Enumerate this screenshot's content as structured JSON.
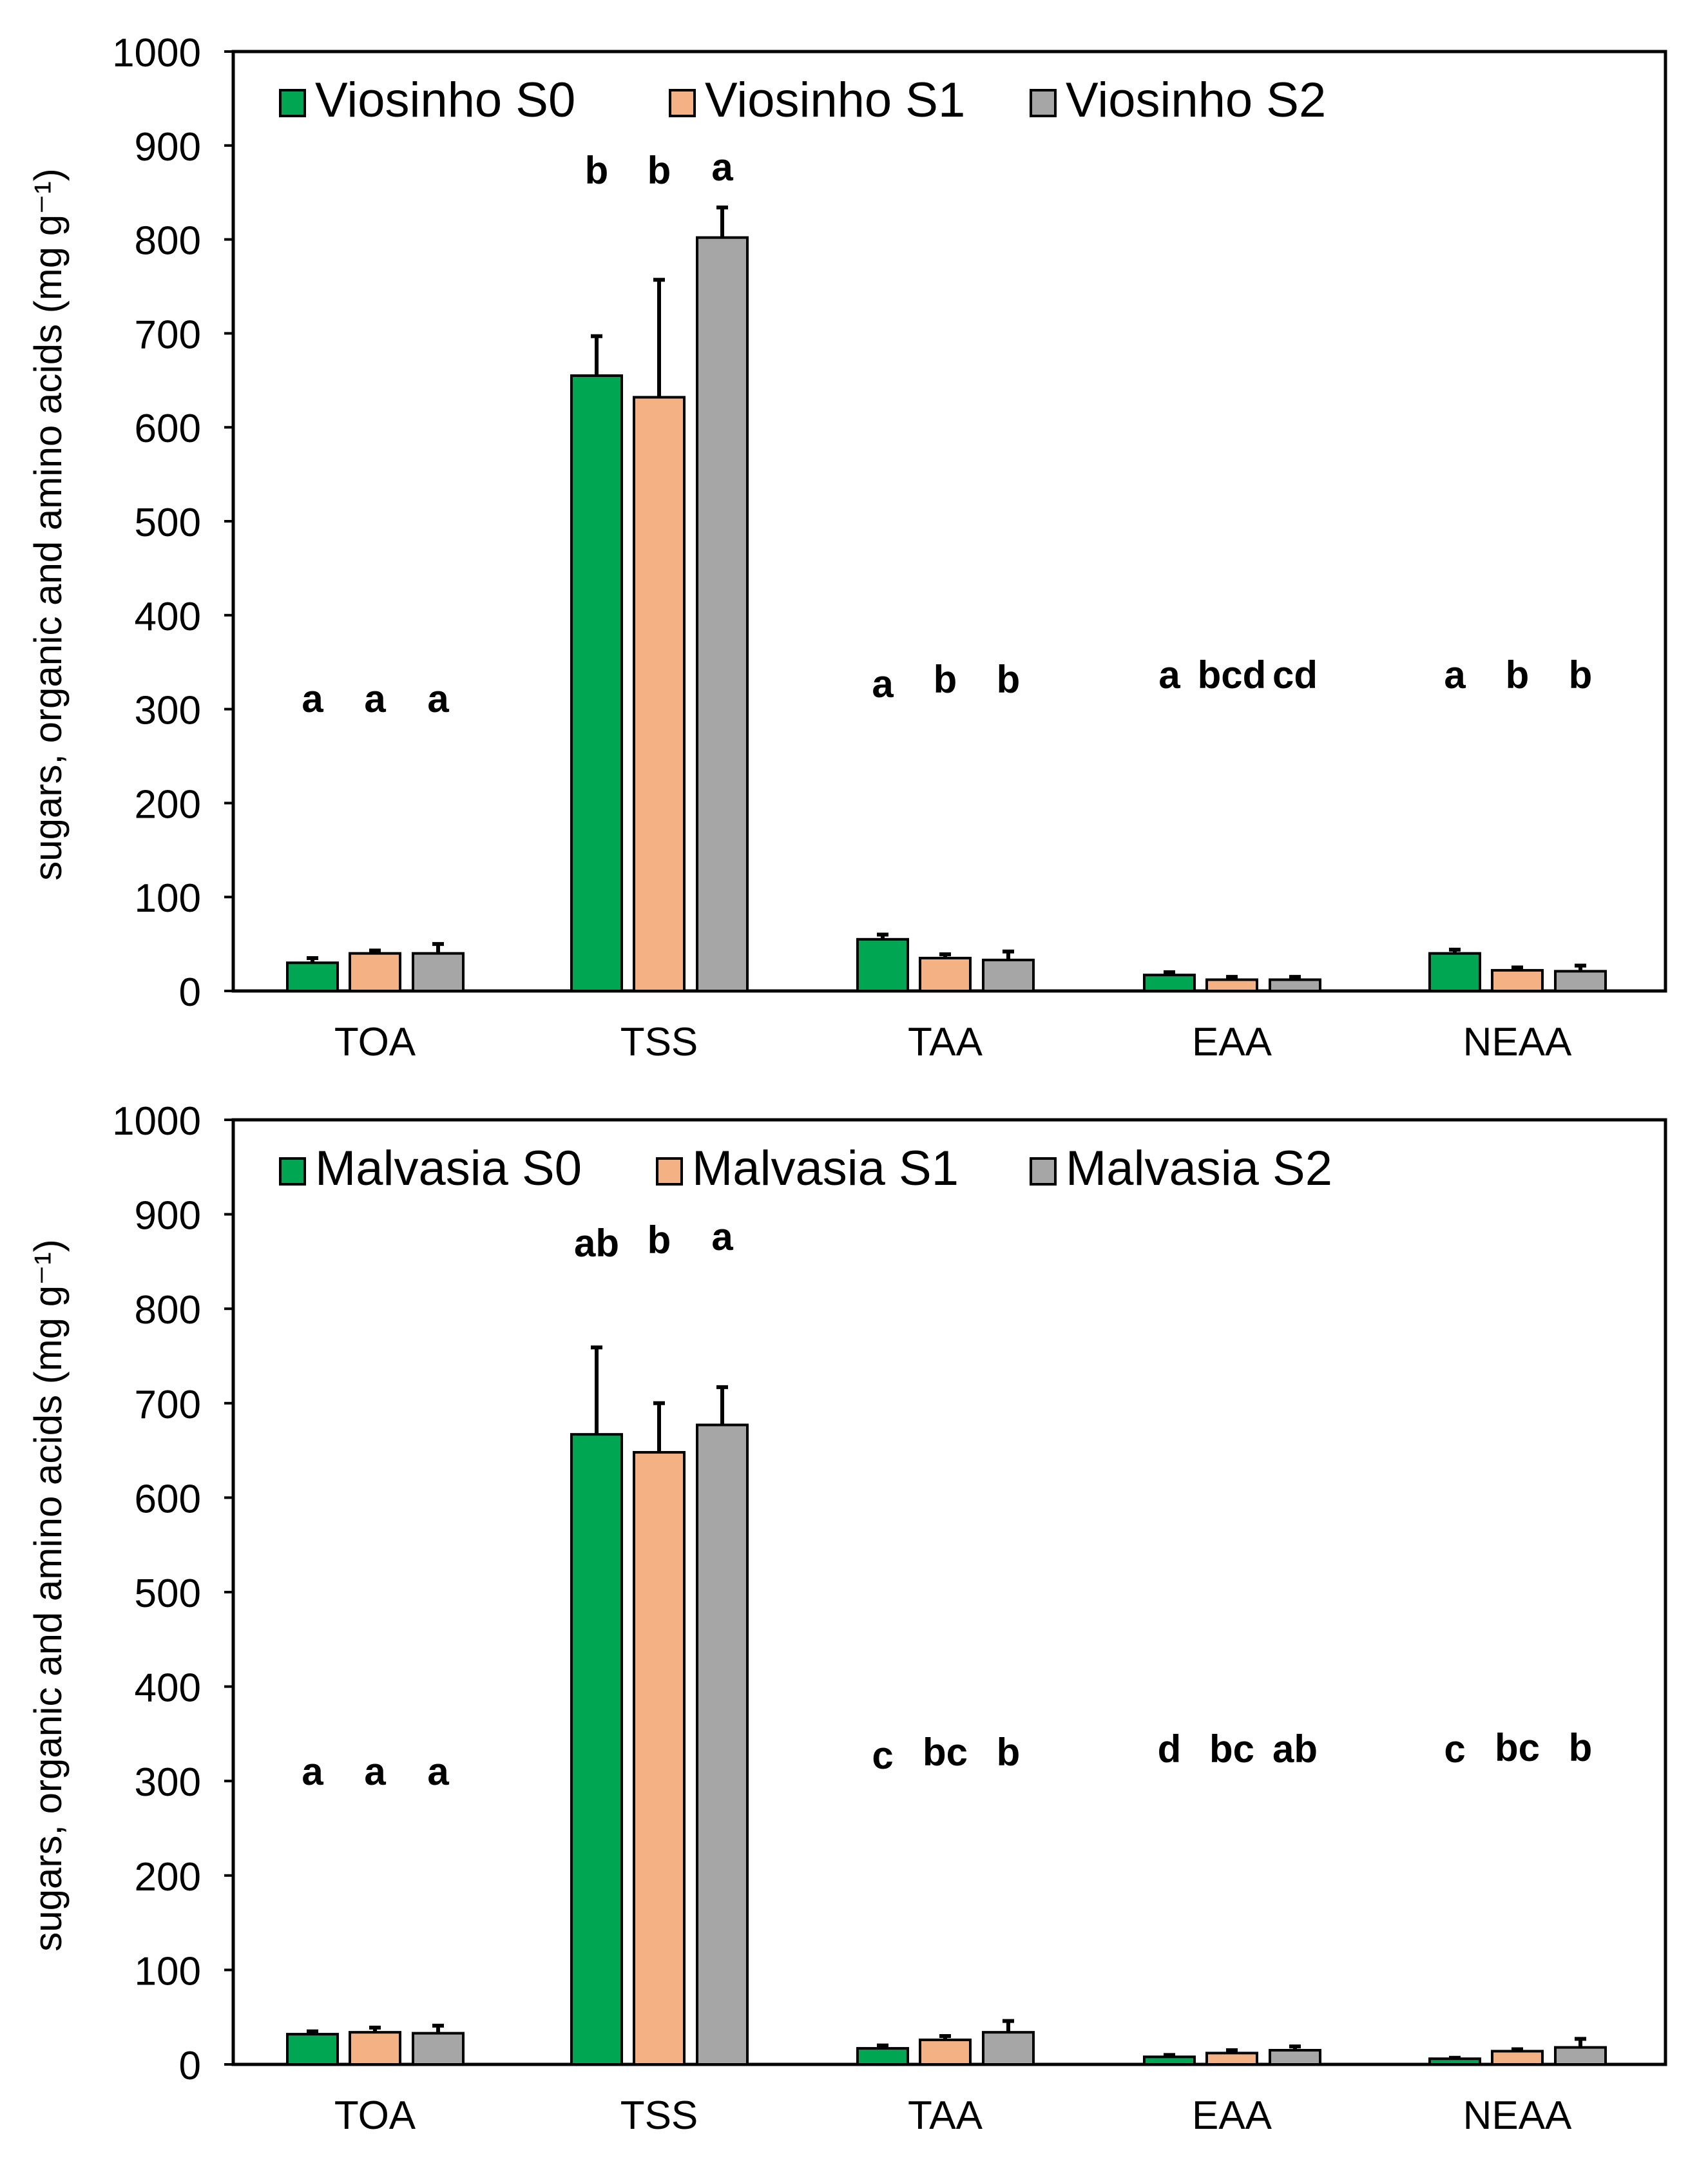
{
  "chart_data": [
    {
      "type": "bar",
      "title": "",
      "xlabel": "",
      "ylabel": "sugars, organic and amino acids (mg g⁻¹)",
      "ylim": [
        0,
        1000
      ],
      "yticks": [
        0,
        100,
        200,
        300,
        400,
        500,
        600,
        700,
        800,
        900,
        1000
      ],
      "grid": false,
      "legend_position": "top",
      "categories": [
        "TOA",
        "TSS",
        "TAA",
        "EAA",
        "NEAA"
      ],
      "series": [
        {
          "name": "Viosinho S0",
          "color": "#00a651",
          "values": [
            30,
            655,
            55,
            17,
            40
          ],
          "errors": [
            5,
            42,
            5,
            3,
            4
          ],
          "letters": [
            "a",
            "b",
            "a",
            "a",
            "a"
          ]
        },
        {
          "name": "Viosinho S1",
          "color": "#f4b183",
          "values": [
            40,
            632,
            35,
            12,
            22
          ],
          "errors": [
            3,
            125,
            4,
            3,
            3
          ],
          "letters": [
            "a",
            "b",
            "b",
            "bcd",
            "b"
          ]
        },
        {
          "name": "Viosinho S2",
          "color": "#a6a6a6",
          "values": [
            40,
            802,
            33,
            12,
            21
          ],
          "errors": [
            10,
            32,
            9,
            3,
            6
          ],
          "letters": [
            "a",
            "a",
            "b",
            "cd",
            "b"
          ]
        }
      ]
    },
    {
      "type": "bar",
      "title": "",
      "xlabel": "",
      "ylabel": "sugars, organic and amino acids (mg g⁻¹)",
      "ylim": [
        0,
        1000
      ],
      "yticks": [
        0,
        100,
        200,
        300,
        400,
        500,
        600,
        700,
        800,
        900,
        1000
      ],
      "grid": false,
      "legend_position": "top",
      "categories": [
        "TOA",
        "TSS",
        "TAA",
        "EAA",
        "NEAA"
      ],
      "series": [
        {
          "name": "Malvasia S0",
          "color": "#00a651",
          "values": [
            32,
            667,
            17,
            8,
            6
          ],
          "errors": [
            3,
            92,
            3,
            2,
            1
          ],
          "letters": [
            "a",
            "ab",
            "c",
            "d",
            "c"
          ]
        },
        {
          "name": "Malvasia S1",
          "color": "#f4b183",
          "values": [
            34,
            648,
            26,
            12,
            14
          ],
          "errors": [
            5,
            52,
            4,
            3,
            2
          ],
          "letters": [
            "a",
            "b",
            "bc",
            "bc",
            "bc"
          ]
        },
        {
          "name": "Malvasia S2",
          "color": "#a6a6a6",
          "values": [
            33,
            677,
            34,
            15,
            18
          ],
          "errors": [
            8,
            40,
            12,
            4,
            9
          ],
          "letters": [
            "a",
            "a",
            "b",
            "ab",
            "b"
          ]
        }
      ]
    }
  ]
}
